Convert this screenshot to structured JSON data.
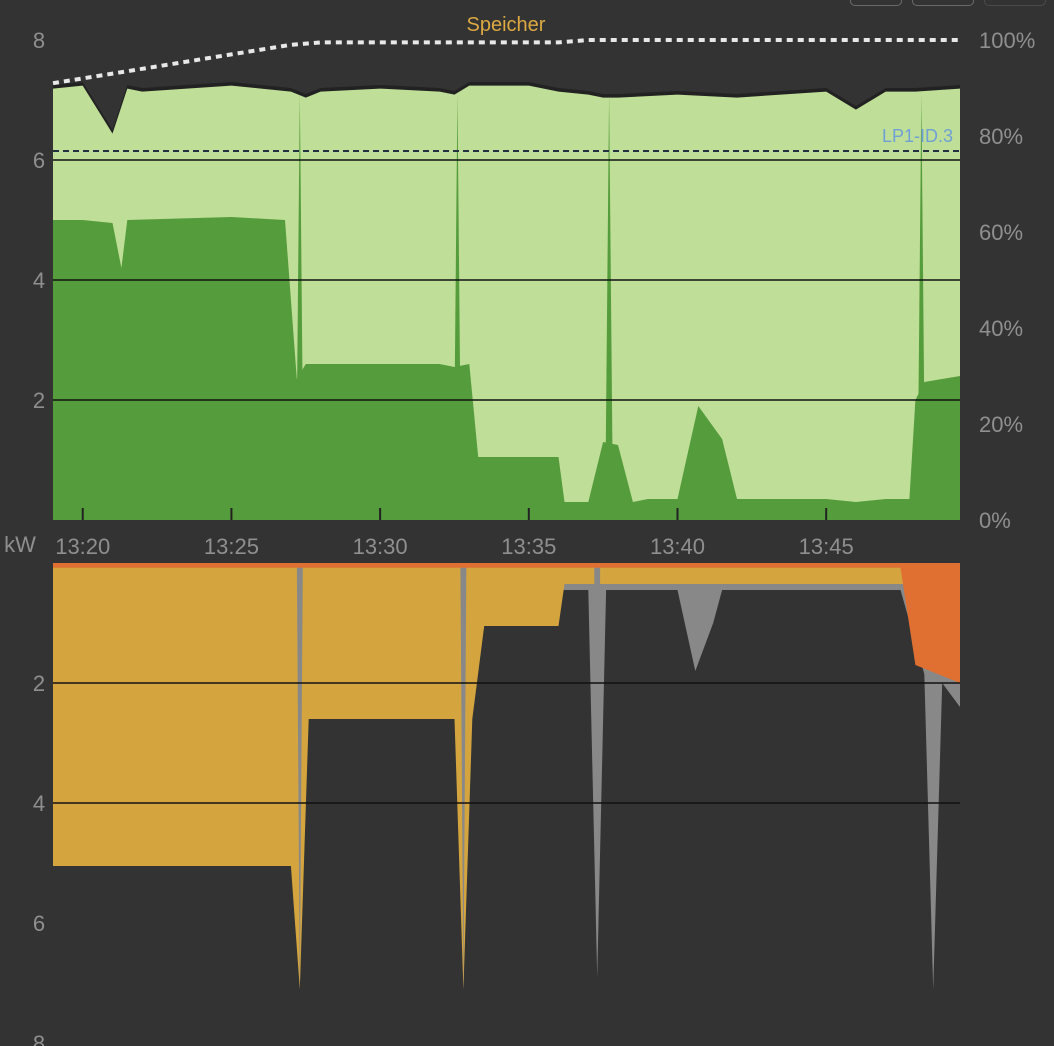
{
  "toolbar": {
    "buttons": [
      {
        "name": "view-button-1"
      },
      {
        "name": "view-button-2"
      },
      {
        "name": "view-button-3"
      }
    ]
  },
  "chart_data": [
    {
      "type": "area",
      "title": "",
      "xlabel": "",
      "ylabel": "",
      "x_ticks": [
        "13:20",
        "13:25",
        "13:30",
        "13:35",
        "13:40",
        "13:45"
      ],
      "y_ticks": [
        "2",
        "4",
        "6",
        "8"
      ],
      "ylim": [
        0,
        8
      ],
      "y2_ticks": [
        "0%",
        "20%",
        "40%",
        "60%",
        "80%",
        "100%"
      ],
      "y2lim": [
        0,
        100
      ],
      "grid": true,
      "colors": {
        "total": "#bfde97",
        "solar": "#559c3c",
        "battery": "#e8e8e8",
        "loadpoint": "#6fa0d6",
        "label_speicher": "#dca942"
      },
      "series": [
        {
          "name": "",
          "kind": "total-consumption-area",
          "x": [
            "13:19",
            "13:20",
            "13:21",
            "13:21.5",
            "13:22",
            "13:25",
            "13:26",
            "13:27",
            "13:27.5",
            "13:28",
            "13:30",
            "13:32",
            "13:32.5",
            "13:33",
            "13:35",
            "13:36",
            "13:37",
            "13:37.5",
            "13:38",
            "13:40",
            "13:42",
            "13:45",
            "13:46",
            "13:47",
            "13:48",
            "13:49.5"
          ],
          "values": [
            7.25,
            7.3,
            6.5,
            7.25,
            7.2,
            7.3,
            7.25,
            7.2,
            7.1,
            7.2,
            7.25,
            7.2,
            7.15,
            7.3,
            7.3,
            7.2,
            7.15,
            7.1,
            7.1,
            7.15,
            7.1,
            7.2,
            6.9,
            7.2,
            7.2,
            7.25
          ]
        },
        {
          "name": "",
          "kind": "solar-area",
          "x": [
            "13:19",
            "13:20",
            "13:21",
            "13:21.3",
            "13:21.5",
            "13:25",
            "13:26.8",
            "13:27.2",
            "13:27.5",
            "13:32",
            "13:32.5",
            "13:33",
            "13:33.3",
            "13:34",
            "13:36",
            "13:36.2",
            "13:37",
            "13:37.5",
            "13:38",
            "13:38.5",
            "13:39",
            "13:40",
            "13:40.7",
            "13:41.5",
            "13:42",
            "13:45",
            "13:46",
            "13:47",
            "13:47.8",
            "13:48",
            "13:48.3",
            "13:49.5"
          ],
          "values": [
            5.0,
            5.0,
            4.95,
            4.2,
            5.0,
            5.05,
            5.0,
            2.35,
            2.6,
            2.6,
            2.55,
            2.6,
            1.05,
            1.05,
            1.05,
            0.3,
            0.3,
            1.3,
            1.25,
            0.3,
            0.35,
            0.35,
            1.9,
            1.35,
            0.35,
            0.35,
            0.3,
            0.35,
            0.35,
            2.0,
            2.3,
            2.4
          ]
        },
        {
          "name": "Speicher",
          "kind": "battery-soc-percent",
          "x": [
            "13:19",
            "13:20",
            "13:21",
            "13:22",
            "13:23",
            "13:24",
            "13:25",
            "13:26",
            "13:27",
            "13:28",
            "13:29",
            "13:30",
            "13:35",
            "13:36",
            "13:37",
            "13:40",
            "13:45",
            "13:49.5"
          ],
          "values": [
            91,
            92,
            93,
            94,
            95,
            96,
            97,
            98,
            99,
            99.5,
            99.5,
            99.5,
            99.5,
            99.5,
            100,
            100,
            100,
            100
          ]
        },
        {
          "name": "LP1-ID.3",
          "kind": "loadpoint-line",
          "value": 6.15
        }
      ]
    },
    {
      "type": "area",
      "title": "",
      "xlabel": "",
      "ylabel": "kW",
      "y_ticks": [
        "2",
        "4",
        "6",
        "8"
      ],
      "ylim": [
        0,
        8
      ],
      "inverted": true,
      "grid": true,
      "colors": {
        "grey": "#888888",
        "gold": "#d4a53f",
        "orange": "#df7032"
      },
      "series": [
        {
          "name": "",
          "kind": "grey-band",
          "x": [
            "13:19",
            "13:27",
            "13:27.3",
            "13:27.6",
            "13:32.5",
            "13:32.8",
            "13:33.1",
            "13:37",
            "13:37.3",
            "13:37.6",
            "13:38",
            "13:40",
            "13:40.6",
            "13:41.2",
            "13:41.5",
            "13:47.5",
            "13:48.3",
            "13:48.6",
            "13:48.9",
            "13:49.5"
          ],
          "values": [
            0.45,
            0.45,
            7.1,
            0.45,
            0.45,
            7.1,
            0.45,
            0.45,
            6.9,
            0.45,
            0.45,
            0.45,
            1.8,
            1.0,
            0.45,
            0.45,
            1.85,
            7.1,
            2.0,
            2.4
          ]
        },
        {
          "name": "",
          "kind": "gold-area",
          "x": [
            "13:19",
            "13:27",
            "13:27.3",
            "13:27.6",
            "13:32.5",
            "13:32.8",
            "13:33.1",
            "13:33.5",
            "13:36",
            "13:36.2",
            "13:49.5"
          ],
          "values": [
            5.05,
            5.05,
            7.1,
            2.6,
            2.6,
            7.1,
            2.6,
            1.05,
            1.05,
            0.35,
            0.35
          ]
        },
        {
          "name": "",
          "kind": "orange-area",
          "x": [
            "13:19",
            "13:47.5",
            "13:48",
            "13:49.5"
          ],
          "values": [
            0.08,
            0.08,
            1.7,
            2.0
          ]
        }
      ]
    }
  ]
}
